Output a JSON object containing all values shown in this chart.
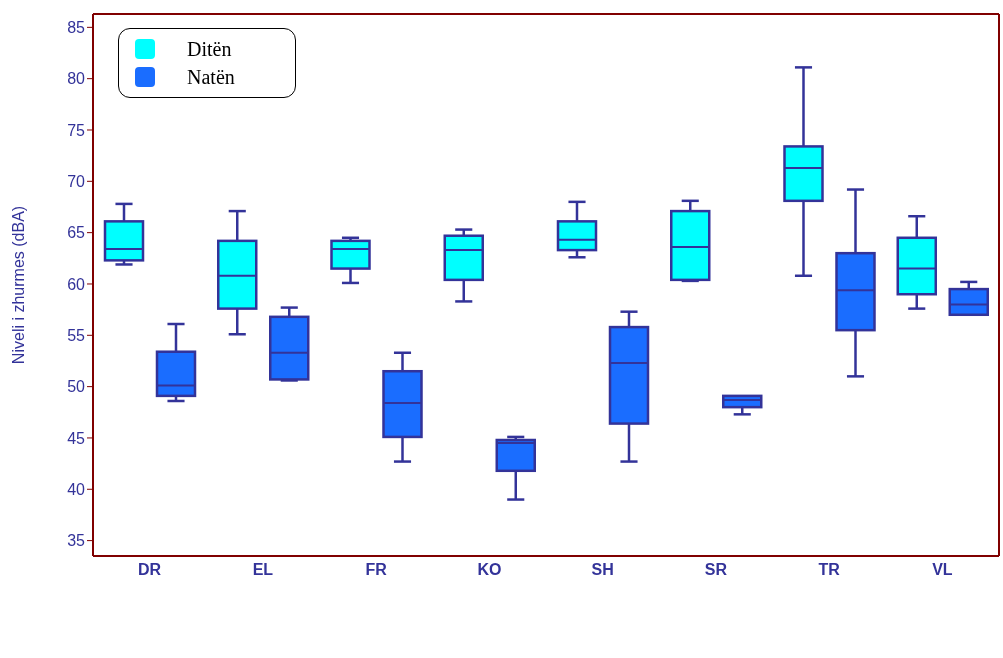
{
  "chart_data": {
    "type": "box",
    "ylabel": "Niveli i zhurmes (dBA)",
    "categories": [
      "DR",
      "EL",
      "FR",
      "KO",
      "SH",
      "SR",
      "TR",
      "VL"
    ],
    "ylim": [
      33.5,
      86.3
    ],
    "yticks": [
      35,
      40,
      45,
      50,
      55,
      60,
      65,
      70,
      75,
      80,
      85
    ],
    "grid": false,
    "legend": "top left",
    "series": [
      {
        "name": "Ditën",
        "color": "#00ffff",
        "boxes": [
          {
            "low": 61.9,
            "q1": 62.3,
            "median": 63.4,
            "q3": 66.1,
            "high": 67.8
          },
          {
            "low": 55.1,
            "q1": 57.6,
            "median": 60.8,
            "q3": 64.2,
            "high": 67.1
          },
          {
            "low": 60.1,
            "q1": 61.5,
            "median": 63.4,
            "q3": 64.2,
            "high": 64.5
          },
          {
            "low": 58.3,
            "q1": 60.4,
            "median": 63.3,
            "q3": 64.7,
            "high": 65.3
          },
          {
            "low": 62.6,
            "q1": 63.3,
            "median": 64.3,
            "q3": 66.1,
            "high": 68.0
          },
          {
            "low": 60.3,
            "q1": 60.4,
            "median": 63.6,
            "q3": 67.1,
            "high": 68.1
          },
          {
            "low": 60.8,
            "q1": 68.1,
            "median": 71.3,
            "q3": 73.4,
            "high": 81.1
          },
          {
            "low": 57.6,
            "q1": 59.0,
            "median": 61.5,
            "q3": 64.5,
            "high": 66.6
          }
        ]
      },
      {
        "name": "Natën",
        "color": "#1a6dff",
        "boxes": [
          {
            "low": 48.6,
            "q1": 49.1,
            "median": 50.1,
            "q3": 53.4,
            "high": 56.1
          },
          {
            "low": 50.6,
            "q1": 50.7,
            "median": 53.3,
            "q3": 56.8,
            "high": 57.7
          },
          {
            "low": 42.7,
            "q1": 45.1,
            "median": 48.4,
            "q3": 51.5,
            "high": 53.3
          },
          {
            "low": 39.0,
            "q1": 41.8,
            "median": 44.5,
            "q3": 44.8,
            "high": 45.1
          },
          {
            "low": 42.7,
            "q1": 46.4,
            "median": 52.3,
            "q3": 55.8,
            "high": 57.3
          },
          {
            "low": 47.3,
            "q1": 48.0,
            "median": 48.7,
            "q3": 49.1,
            "high": 49.1
          },
          {
            "low": 51.0,
            "q1": 55.5,
            "median": 59.4,
            "q3": 63.0,
            "high": 69.2
          },
          {
            "low": 57.0,
            "q1": 57.0,
            "median": 58.0,
            "q3": 59.5,
            "high": 60.2
          }
        ]
      }
    ]
  }
}
